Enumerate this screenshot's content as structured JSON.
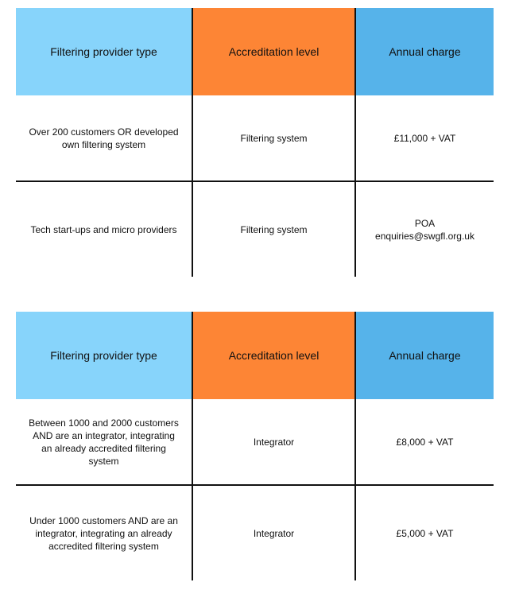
{
  "tables": [
    {
      "header": [
        "Filtering provider type",
        "Accreditation level",
        "Annual charge"
      ],
      "rows": [
        [
          "Over 200 customers OR developed own filtering system",
          "Filtering system",
          "£11,000 + VAT"
        ],
        [
          "Tech start-ups and micro providers",
          "Filtering system",
          [
            "POA",
            "enquiries@swgfl.org.uk"
          ]
        ]
      ]
    },
    {
      "header": [
        "Filtering provider type",
        "Accreditation level",
        "Annual charge"
      ],
      "rows": [
        [
          "Between 1000 and 2000 customers AND are an integrator, integrating an already accredited filtering system",
          "Integrator",
          "£8,000 + VAT"
        ],
        [
          "Under 1000 customers AND are an integrator, integrating an already accredited filtering system",
          "Integrator",
          "£5,000 + VAT"
        ]
      ]
    }
  ]
}
